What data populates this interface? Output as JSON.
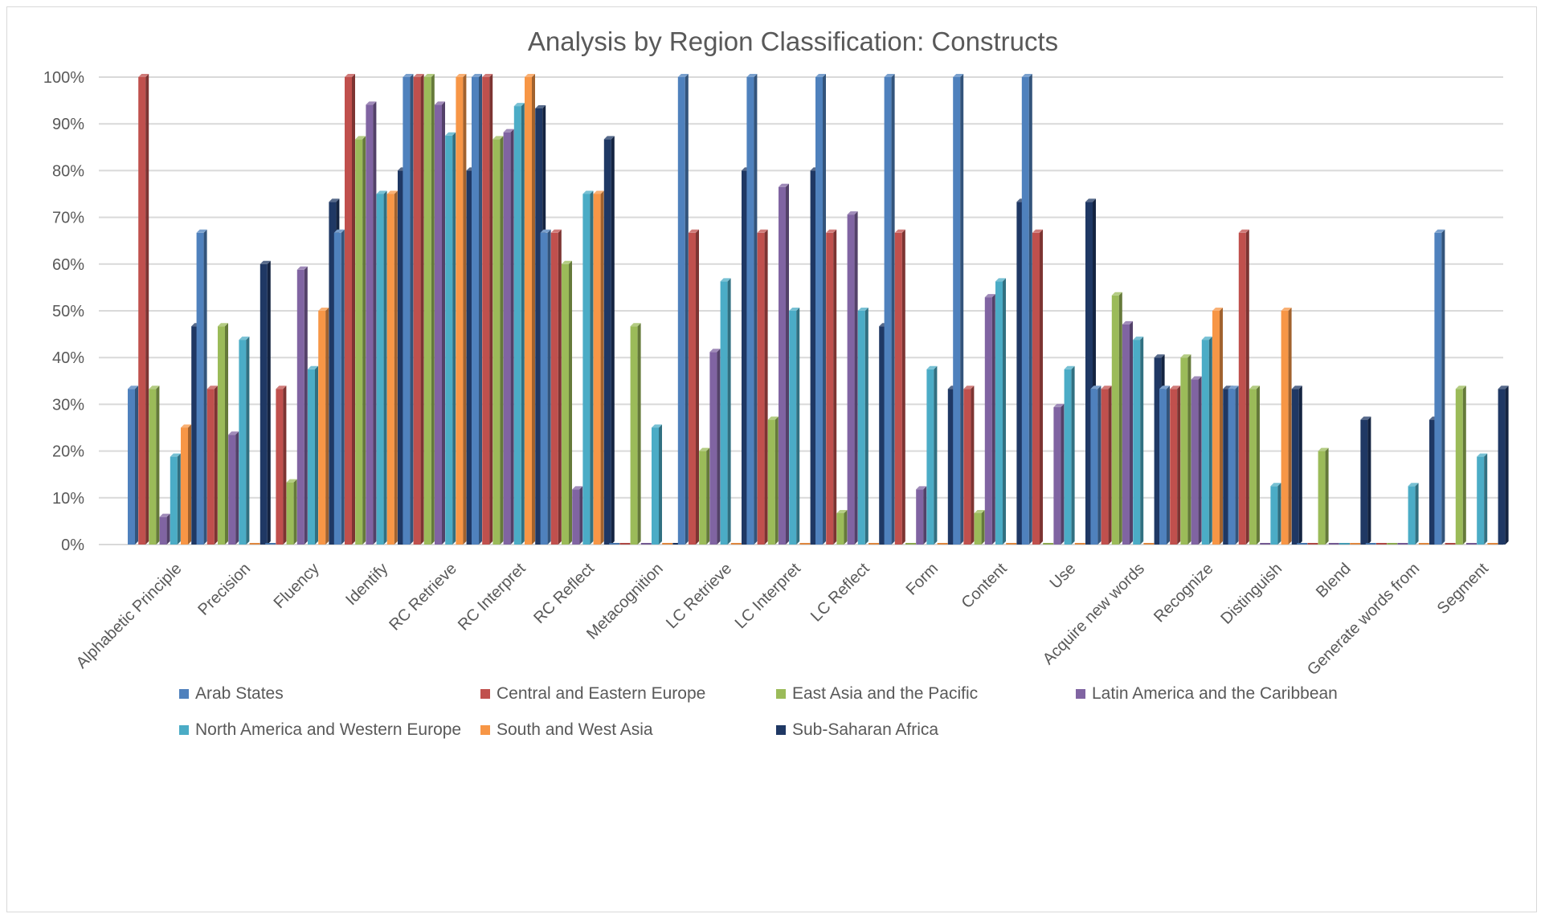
{
  "chart_data": {
    "type": "bar",
    "title": "Analysis by Region Classification: Constructs",
    "xlabel": "",
    "ylabel": "",
    "ylim": [
      0,
      1
    ],
    "y_ticks": [
      "0%",
      "10%",
      "20%",
      "30%",
      "40%",
      "50%",
      "60%",
      "70%",
      "80%",
      "90%",
      "100%"
    ],
    "grid": true,
    "legend_position": "bottom",
    "categories": [
      "Alphabetic Principle",
      "Precision",
      "Fluency",
      "Identify",
      "RC Retrieve",
      "RC Interpret",
      "RC Reflect",
      "Metacognition",
      "LC Retrieve",
      "LC Interpret",
      "LC Reflect",
      "Form",
      "Content",
      "Use",
      "Acquire new words",
      "Recognize",
      "Distinguish",
      "Blend",
      "Generate words from",
      "Segment"
    ],
    "series": [
      {
        "name": "Arab States",
        "color": "#4f81bd",
        "values": [
          0.333,
          0.667,
          0,
          0.667,
          1.0,
          1.0,
          0.667,
          0,
          1.0,
          1.0,
          1.0,
          1.0,
          1.0,
          1.0,
          0.333,
          0.333,
          0.333,
          0,
          0,
          0.667
        ]
      },
      {
        "name": "Central and Eastern Europe",
        "color": "#c0504d",
        "values": [
          1.0,
          0.333,
          0.333,
          1.0,
          1.0,
          1.0,
          0.667,
          0,
          0.667,
          0.667,
          0.667,
          0.667,
          0.333,
          0.667,
          0.333,
          0.333,
          0.667,
          0,
          0,
          0
        ]
      },
      {
        "name": "East Asia and the Pacific",
        "color": "#9bbb59",
        "values": [
          0.333,
          0.467,
          0.133,
          0.867,
          1.0,
          0.867,
          0.6,
          0.467,
          0.2,
          0.267,
          0.067,
          0,
          0.067,
          0,
          0.533,
          0.4,
          0.333,
          0.2,
          0,
          0.333
        ]
      },
      {
        "name": "Latin America and the Caribbean",
        "color": "#8064a2",
        "values": [
          0.059,
          0.235,
          0.588,
          0.941,
          0.941,
          0.882,
          0.118,
          0,
          0.412,
          0.765,
          0.706,
          0.118,
          0.529,
          0.294,
          0.471,
          0.353,
          0,
          0,
          0,
          0
        ]
      },
      {
        "name": "North America and Western Europe",
        "color": "#4bacc6",
        "values": [
          0.188,
          0.438,
          0.375,
          0.75,
          0.875,
          0.938,
          0.75,
          0.25,
          0.563,
          0.5,
          0.5,
          0.375,
          0.563,
          0.375,
          0.438,
          0.438,
          0.125,
          0,
          0.125,
          0.188
        ]
      },
      {
        "name": "South and West Asia",
        "color": "#f79646",
        "values": [
          0.25,
          0,
          0.5,
          0.75,
          1.0,
          1.0,
          0.75,
          0,
          0,
          0,
          0,
          0,
          0,
          0,
          0,
          0.5,
          0.5,
          0,
          0,
          0
        ]
      },
      {
        "name": "Sub-Saharan Africa",
        "color": "#1f3864",
        "values": [
          0.467,
          0.6,
          0.733,
          0.8,
          0.8,
          0.933,
          0.867,
          0,
          0.8,
          0.8,
          0.467,
          0.333,
          0.733,
          0.733,
          0.4,
          0.333,
          0.333,
          0.267,
          0.267,
          0.333
        ]
      }
    ]
  }
}
